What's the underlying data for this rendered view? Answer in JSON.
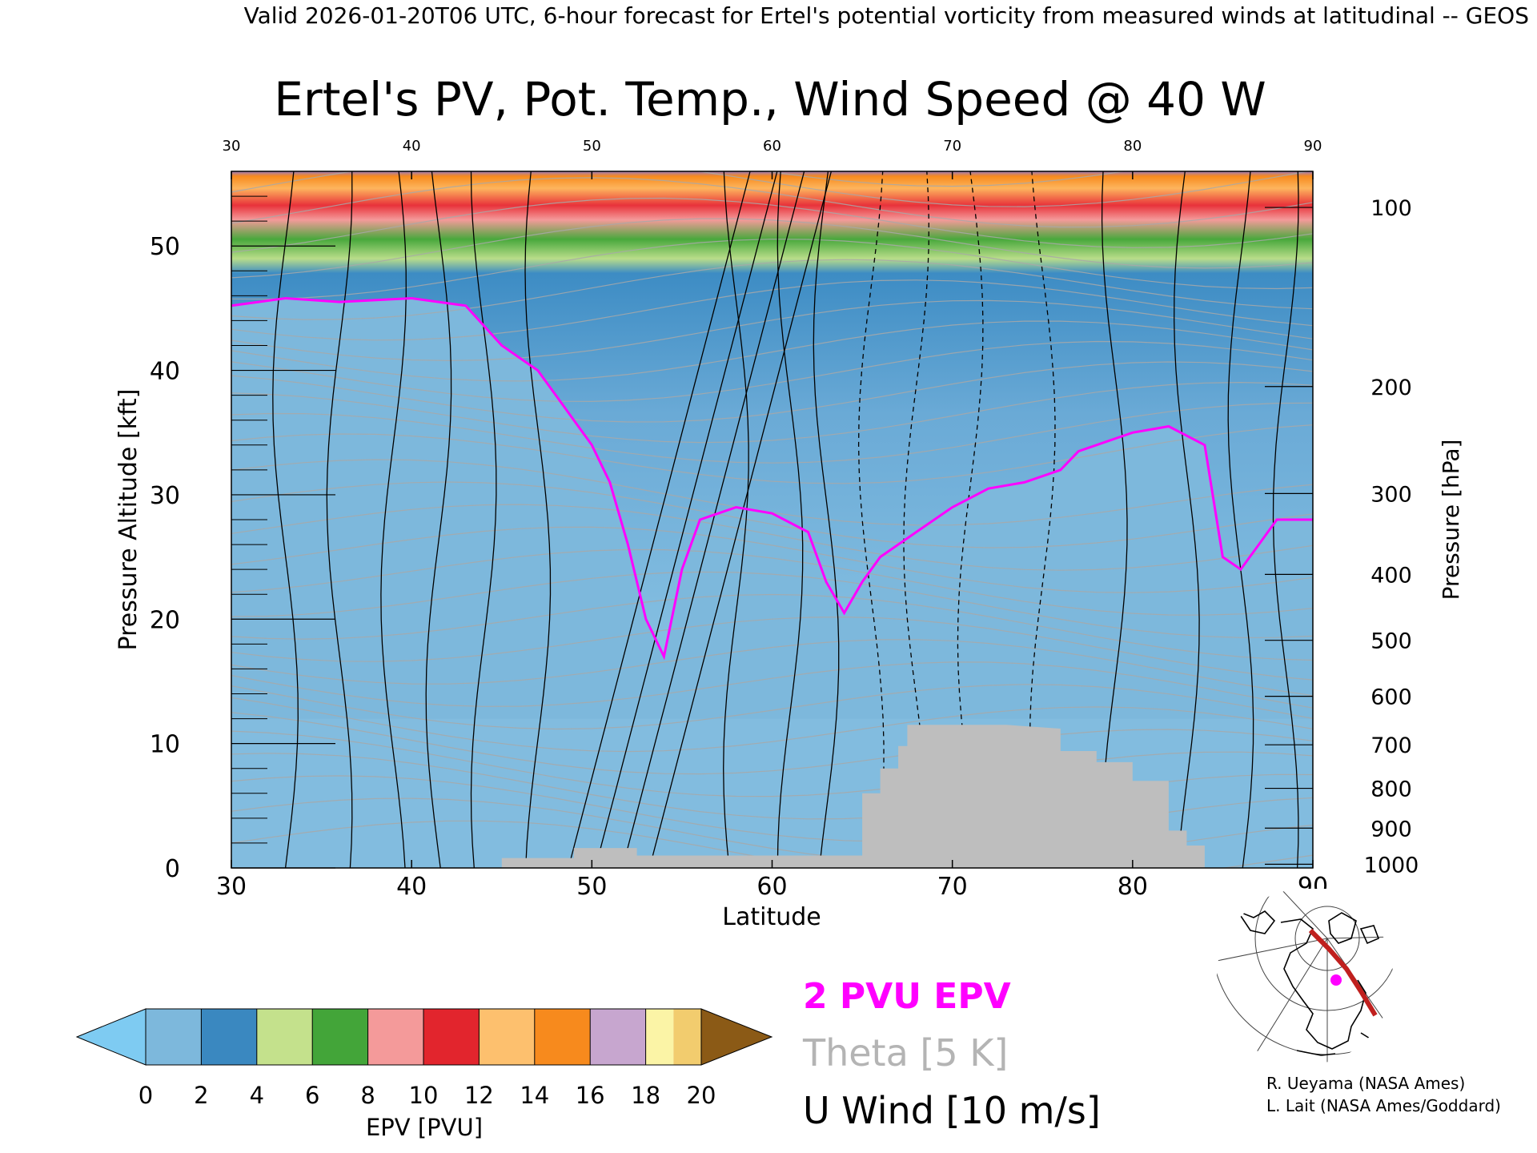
{
  "header": {
    "valid_line": "Valid 2026-01-20T06 UTC, 6-hour forecast for Ertel's potential vorticity from measured winds at latitudinal -- GEOS"
  },
  "chart_data": {
    "type": "heatmap",
    "title": "Ertel's PV, Pot. Temp., Wind Speed @ 40 W",
    "xlabel": "Latitude",
    "ylabel_left": "Pressure Altitude [kft]",
    "ylabel_right": "Pressure [hPa]",
    "xlim": [
      30,
      90
    ],
    "ylim_kft": [
      0,
      56
    ],
    "x_ticks": [
      "30",
      "40",
      "50",
      "60",
      "70",
      "80",
      "90"
    ],
    "x_ticks_top": [
      "30",
      "40",
      "50",
      "60",
      "70",
      "80",
      "90"
    ],
    "y_ticks_kft": [
      "0",
      "10",
      "20",
      "30",
      "40",
      "50"
    ],
    "y_ticks_hpa": [
      {
        "label": "100",
        "kft": 53.1
      },
      {
        "label": "200",
        "kft": 38.7
      },
      {
        "label": "300",
        "kft": 30.1
      },
      {
        "label": "400",
        "kft": 23.6
      },
      {
        "label": "500",
        "kft": 18.3
      },
      {
        "label": "600",
        "kft": 13.8
      },
      {
        "label": "700",
        "kft": 9.9
      },
      {
        "label": "800",
        "kft": 6.4
      },
      {
        "label": "900",
        "kft": 3.2
      },
      {
        "label": "1000",
        "kft": 0.3
      }
    ],
    "two_pvu_height_kft": [
      [
        30,
        45.2
      ],
      [
        33,
        45.8
      ],
      [
        36,
        45.5
      ],
      [
        40,
        45.8
      ],
      [
        43,
        45.2
      ],
      [
        45,
        42
      ],
      [
        47,
        40
      ],
      [
        48,
        38
      ],
      [
        49,
        36
      ],
      [
        50,
        34
      ],
      [
        51,
        31
      ],
      [
        52,
        26
      ],
      [
        53,
        20
      ],
      [
        54,
        17
      ],
      [
        55,
        24
      ],
      [
        56,
        28
      ],
      [
        58,
        29
      ],
      [
        60,
        28.5
      ],
      [
        62,
        27
      ],
      [
        63,
        23
      ],
      [
        64,
        20.5
      ],
      [
        65,
        23
      ],
      [
        66,
        25
      ],
      [
        68,
        27
      ],
      [
        70,
        29
      ],
      [
        72,
        30.5
      ],
      [
        74,
        31
      ],
      [
        76,
        32
      ],
      [
        77,
        33.5
      ],
      [
        78,
        34
      ],
      [
        80,
        35
      ],
      [
        82,
        35.5
      ],
      [
        84,
        34
      ],
      [
        85,
        25
      ],
      [
        86,
        24
      ],
      [
        87,
        26
      ],
      [
        88,
        28
      ],
      [
        90,
        28
      ]
    ],
    "two_pvu_color": "#ff00ff",
    "colorbar": {
      "label": "EPV [PVU]",
      "ticks": [
        "0",
        "2",
        "4",
        "6",
        "8",
        "10",
        "12",
        "14",
        "16",
        "18",
        "20"
      ],
      "under_color": "#7ecbf2",
      "over_color": "#8b5a16",
      "colors": [
        "#7db8dc",
        "#3a88c0",
        "#c4e18c",
        "#43a539",
        "#f49a9a",
        "#e2252d",
        "#fdc06e",
        "#f78a1d",
        "#c7a6cf",
        "#6f3590"
      ],
      "last_bin_colors": [
        "#fbf4a6",
        "#f2cc6e"
      ]
    },
    "terrain": {
      "color": "#bebebe",
      "profile_kft": [
        [
          45,
          0.8
        ],
        [
          49,
          0.8
        ],
        [
          49,
          1.6
        ],
        [
          52.5,
          1.6
        ],
        [
          52.5,
          1
        ],
        [
          55,
          1
        ],
        [
          65,
          1
        ],
        [
          65,
          6
        ],
        [
          66,
          6
        ],
        [
          66,
          8
        ],
        [
          67,
          8
        ],
        [
          67,
          9.8
        ],
        [
          67.5,
          9.8
        ],
        [
          67.5,
          11.5
        ],
        [
          73,
          11.5
        ],
        [
          76,
          11.2
        ],
        [
          76,
          9.4
        ],
        [
          78,
          9.4
        ],
        [
          78,
          8.5
        ],
        [
          80,
          8.5
        ],
        [
          80,
          7
        ],
        [
          82,
          7
        ],
        [
          82,
          3
        ],
        [
          83,
          3
        ],
        [
          83,
          1.8
        ],
        [
          84,
          1.8
        ],
        [
          84,
          0
        ]
      ]
    },
    "legend": {
      "pv_line": "2 PVU EPV",
      "theta": "Theta [5 K]",
      "wind": "U Wind [10 m/s]"
    }
  },
  "credits": {
    "line1": "R. Ueyama (NASA Ames)",
    "line2": "L. Lait (NASA Ames/Goddard)"
  },
  "inset_map": {
    "track_color": "#c0201e",
    "marker_color": "#ff00ff"
  }
}
